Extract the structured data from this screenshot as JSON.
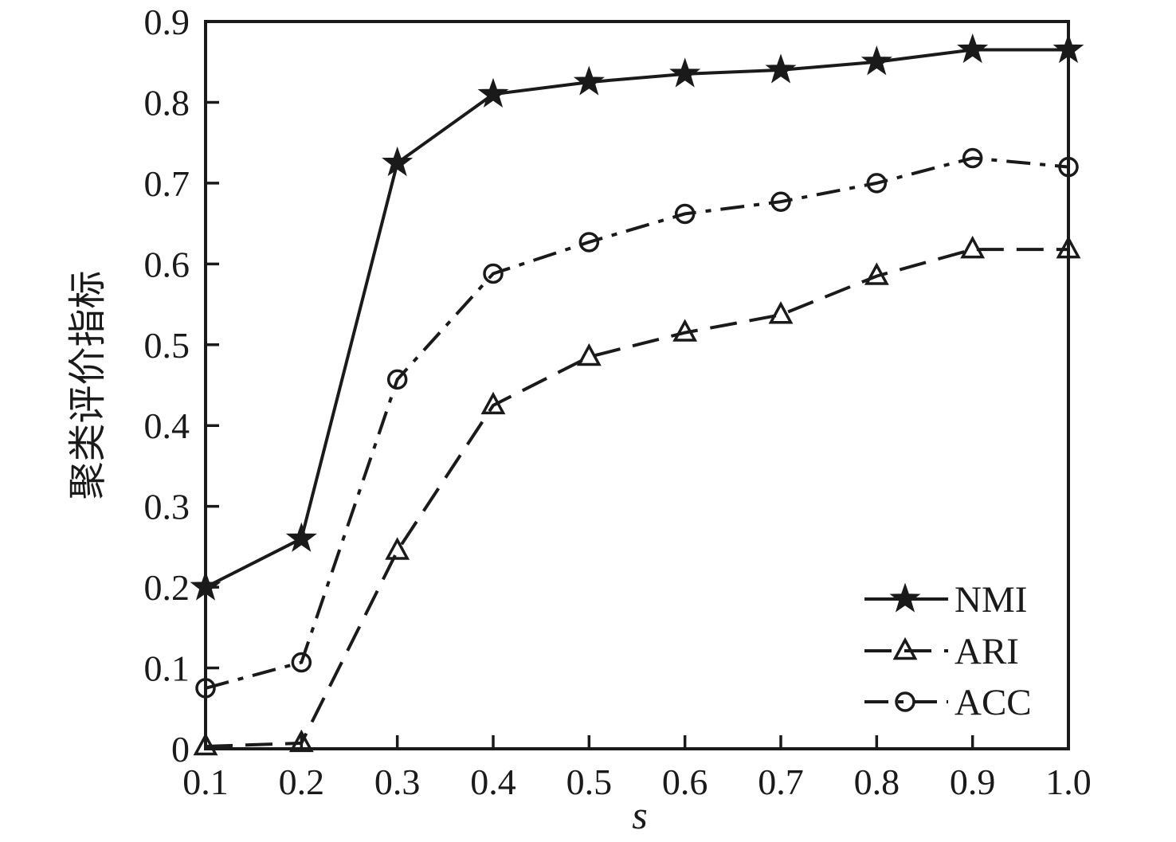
{
  "figure": {
    "background": "#ffffff",
    "axis_color": "#1a1a1a"
  },
  "chart_data": {
    "type": "line",
    "title": "",
    "xlabel": "s",
    "ylabel": "聚类评价指标",
    "xlim": [
      0.1,
      1.0
    ],
    "ylim": [
      0,
      0.9
    ],
    "grid": false,
    "legend_position": "lower-right",
    "legend_frame": false,
    "x_ticks": [
      0.1,
      0.2,
      0.3,
      0.4,
      0.5,
      0.6,
      0.7,
      0.8,
      0.9,
      1.0
    ],
    "x_ticklabels": [
      "0.1",
      "0.2",
      "0.3",
      "0.4",
      "0.5",
      "0.6",
      "0.7",
      "0.8",
      "0.9",
      "1.0"
    ],
    "y_ticks": [
      0,
      0.1,
      0.2,
      0.3,
      0.4,
      0.5,
      0.6,
      0.7,
      0.8,
      0.9
    ],
    "y_ticklabels": [
      "0",
      "0.1",
      "0.2",
      "0.3",
      "0.4",
      "0.5",
      "0.6",
      "0.7",
      "0.8",
      "0.9"
    ],
    "x": [
      0.1,
      0.2,
      0.3,
      0.4,
      0.5,
      0.6,
      0.7,
      0.8,
      0.9,
      1.0
    ],
    "series": [
      {
        "name": "NMI",
        "marker": "star",
        "marker_fill": "filled",
        "line_style": "solid",
        "color": "#1a1a1a",
        "values": [
          0.2,
          0.26,
          0.725,
          0.81,
          0.825,
          0.835,
          0.84,
          0.85,
          0.865,
          0.865
        ]
      },
      {
        "name": "ARI",
        "marker": "triangle",
        "marker_fill": "open",
        "line_style": "dashed",
        "color": "#1a1a1a",
        "values": [
          0.003,
          0.007,
          0.245,
          0.425,
          0.485,
          0.515,
          0.537,
          0.585,
          0.618,
          0.618
        ]
      },
      {
        "name": "ACC",
        "marker": "circle",
        "marker_fill": "open",
        "line_style": "dash-dot",
        "color": "#1a1a1a",
        "values": [
          0.075,
          0.107,
          0.457,
          0.588,
          0.627,
          0.662,
          0.677,
          0.7,
          0.731,
          0.72
        ]
      }
    ]
  }
}
